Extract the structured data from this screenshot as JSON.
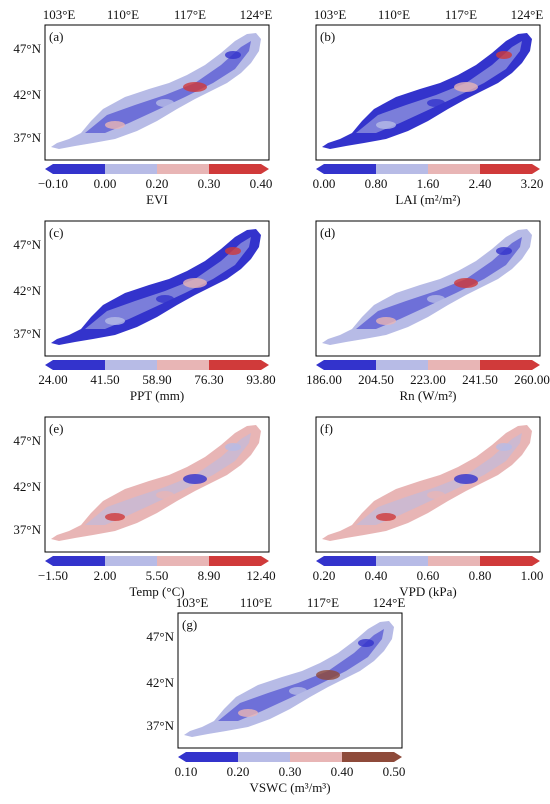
{
  "lon_labels": [
    "103°E",
    "110°E",
    "117°E",
    "124°E"
  ],
  "lat_labels": [
    "47°N",
    "42°N",
    "37°N"
  ],
  "colors": {
    "c1": "#3333cc",
    "c2": "#b7bbe6",
    "c3": "#e8b5b5",
    "c4": "#d03a3a",
    "c4_vswc": "#8e4a3a",
    "frame": "#000000"
  },
  "panels": [
    {
      "id": "a",
      "tag": "(a)",
      "variable": "EVI",
      "unit": "",
      "ticks": [
        "−0.10",
        "0.00",
        "0.20",
        "0.30",
        "0.40"
      ],
      "dominant_class": 2
    },
    {
      "id": "b",
      "tag": "(b)",
      "variable": "LAI",
      "unit": "(m²/m²)",
      "ticks": [
        "0.00",
        "0.80",
        "1.60",
        "2.40",
        "3.20"
      ],
      "dominant_class": 1
    },
    {
      "id": "c",
      "tag": "(c)",
      "variable": "PPT",
      "unit": "(mm)",
      "ticks": [
        "24.00",
        "41.50",
        "58.90",
        "76.30",
        "93.80"
      ],
      "dominant_class": 1
    },
    {
      "id": "d",
      "tag": "(d)",
      "variable": "Rn",
      "unit": "(W/m²)",
      "ticks": [
        "186.00",
        "204.50",
        "223.00",
        "241.50",
        "260.00"
      ],
      "dominant_class": 2
    },
    {
      "id": "e",
      "tag": "(e)",
      "variable": "Temp",
      "unit": "(°C)",
      "ticks": [
        "−1.50",
        "2.00",
        "5.50",
        "8.90",
        "12.40"
      ],
      "dominant_class": 3
    },
    {
      "id": "f",
      "tag": "(f)",
      "variable": "VPD",
      "unit": "(kPa)",
      "ticks": [
        "0.20",
        "0.40",
        "0.60",
        "0.80",
        "1.00"
      ],
      "dominant_class": 3
    },
    {
      "id": "g",
      "tag": "(g)",
      "variable": "VSWC",
      "unit": "(m³/m³)",
      "ticks": [
        "0.10",
        "0.20",
        "0.30",
        "0.40",
        "0.50"
      ],
      "dominant_class": 2
    }
  ]
}
